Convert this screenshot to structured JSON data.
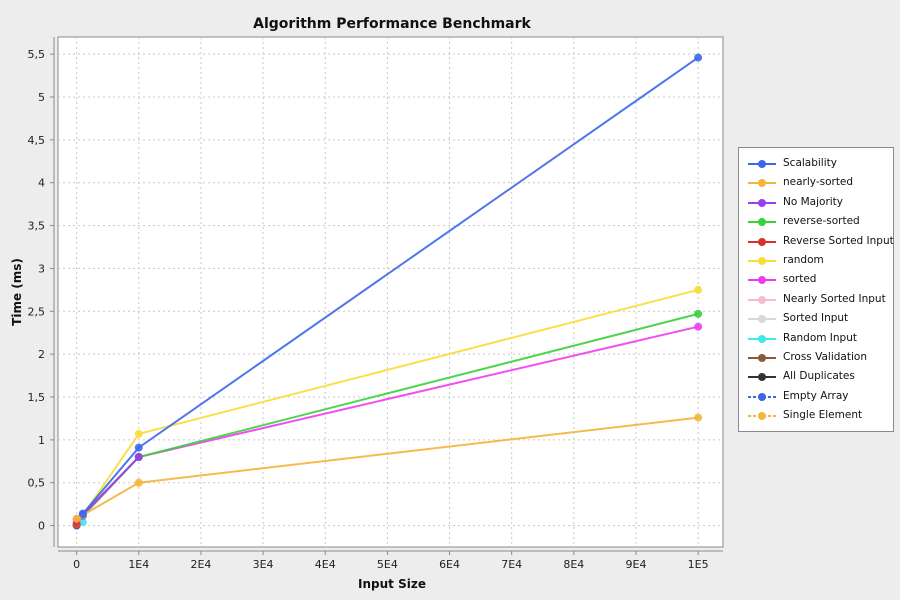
{
  "chart_data": {
    "type": "line",
    "title": "Algorithm Performance Benchmark",
    "xlabel": "Input Size",
    "ylabel": "Time (ms)",
    "xlim": [
      -3000,
      104000
    ],
    "ylim": [
      -0.25,
      5.7
    ],
    "x_ticks": [
      0,
      10000,
      20000,
      30000,
      40000,
      50000,
      60000,
      70000,
      80000,
      90000,
      100000
    ],
    "x_tick_labels": [
      "0",
      "1E4",
      "2E4",
      "3E4",
      "4E4",
      "5E4",
      "6E4",
      "7E4",
      "8E4",
      "9E4",
      "1E5"
    ],
    "y_ticks": [
      0,
      0.5,
      1,
      1.5,
      2,
      2.5,
      3,
      3.5,
      4,
      4.5,
      5,
      5.5
    ],
    "y_tick_labels": [
      "0",
      "0,5",
      "1",
      "1,5",
      "2",
      "2,5",
      "3",
      "3,5",
      "4",
      "4,5",
      "5",
      "5,5"
    ],
    "grid": true,
    "legend_position": "right",
    "series": [
      {
        "name": "Scalability",
        "color": "#3c67e8",
        "dashed": false,
        "points": [
          [
            1000,
            0.14
          ],
          [
            10000,
            0.91
          ],
          [
            100000,
            5.46
          ]
        ]
      },
      {
        "name": "nearly-sorted",
        "color": "#f5b43a",
        "dashed": false,
        "points": [
          [
            0,
            0.08
          ],
          [
            10000,
            0.5
          ],
          [
            100000,
            1.26
          ]
        ]
      },
      {
        "name": "No Majority",
        "color": "#9a3cf0",
        "dashed": false,
        "points": [
          [
            1000,
            0.13
          ],
          [
            10000,
            0.8
          ]
        ]
      },
      {
        "name": "reverse-sorted",
        "color": "#3ad03a",
        "dashed": false,
        "points": [
          [
            1000,
            0.12
          ],
          [
            10000,
            0.8
          ],
          [
            100000,
            2.47
          ]
        ]
      },
      {
        "name": "Reverse Sorted Input",
        "color": "#d83030",
        "dashed": false,
        "points": [
          [
            0,
            0.02
          ]
        ]
      },
      {
        "name": "random",
        "color": "#f7dd3a",
        "dashed": false,
        "points": [
          [
            1000,
            0.12
          ],
          [
            10000,
            1.07
          ],
          [
            100000,
            2.75
          ]
        ]
      },
      {
        "name": "sorted",
        "color": "#f03cf0",
        "dashed": false,
        "points": [
          [
            0,
            0.07
          ],
          [
            1000,
            0.11
          ],
          [
            10000,
            0.8
          ],
          [
            100000,
            2.32
          ]
        ]
      },
      {
        "name": "Nearly Sorted Input",
        "color": "#f7bccb",
        "dashed": false,
        "points": [
          [
            0,
            0.02
          ]
        ]
      },
      {
        "name": "Sorted Input",
        "color": "#d8d8d8",
        "dashed": false,
        "points": [
          [
            0,
            0.02
          ]
        ]
      },
      {
        "name": "Random Input",
        "color": "#3ee8ee",
        "dashed": false,
        "points": [
          [
            0,
            0.03
          ],
          [
            1000,
            0.04
          ]
        ]
      },
      {
        "name": "Cross Validation",
        "color": "#8a5a3a",
        "dashed": false,
        "points": [
          [
            0,
            0.01
          ]
        ]
      },
      {
        "name": "All Duplicates",
        "color": "#333333",
        "dashed": false,
        "points": [
          [
            0,
            0.01
          ]
        ]
      },
      {
        "name": "Empty Array",
        "color": "#3c67e8",
        "dashed": true,
        "points": [
          [
            0,
            0.0
          ]
        ]
      },
      {
        "name": "Single Element",
        "color": "#f5b43a",
        "dashed": true,
        "points": [
          [
            0,
            0.0
          ]
        ]
      }
    ]
  }
}
